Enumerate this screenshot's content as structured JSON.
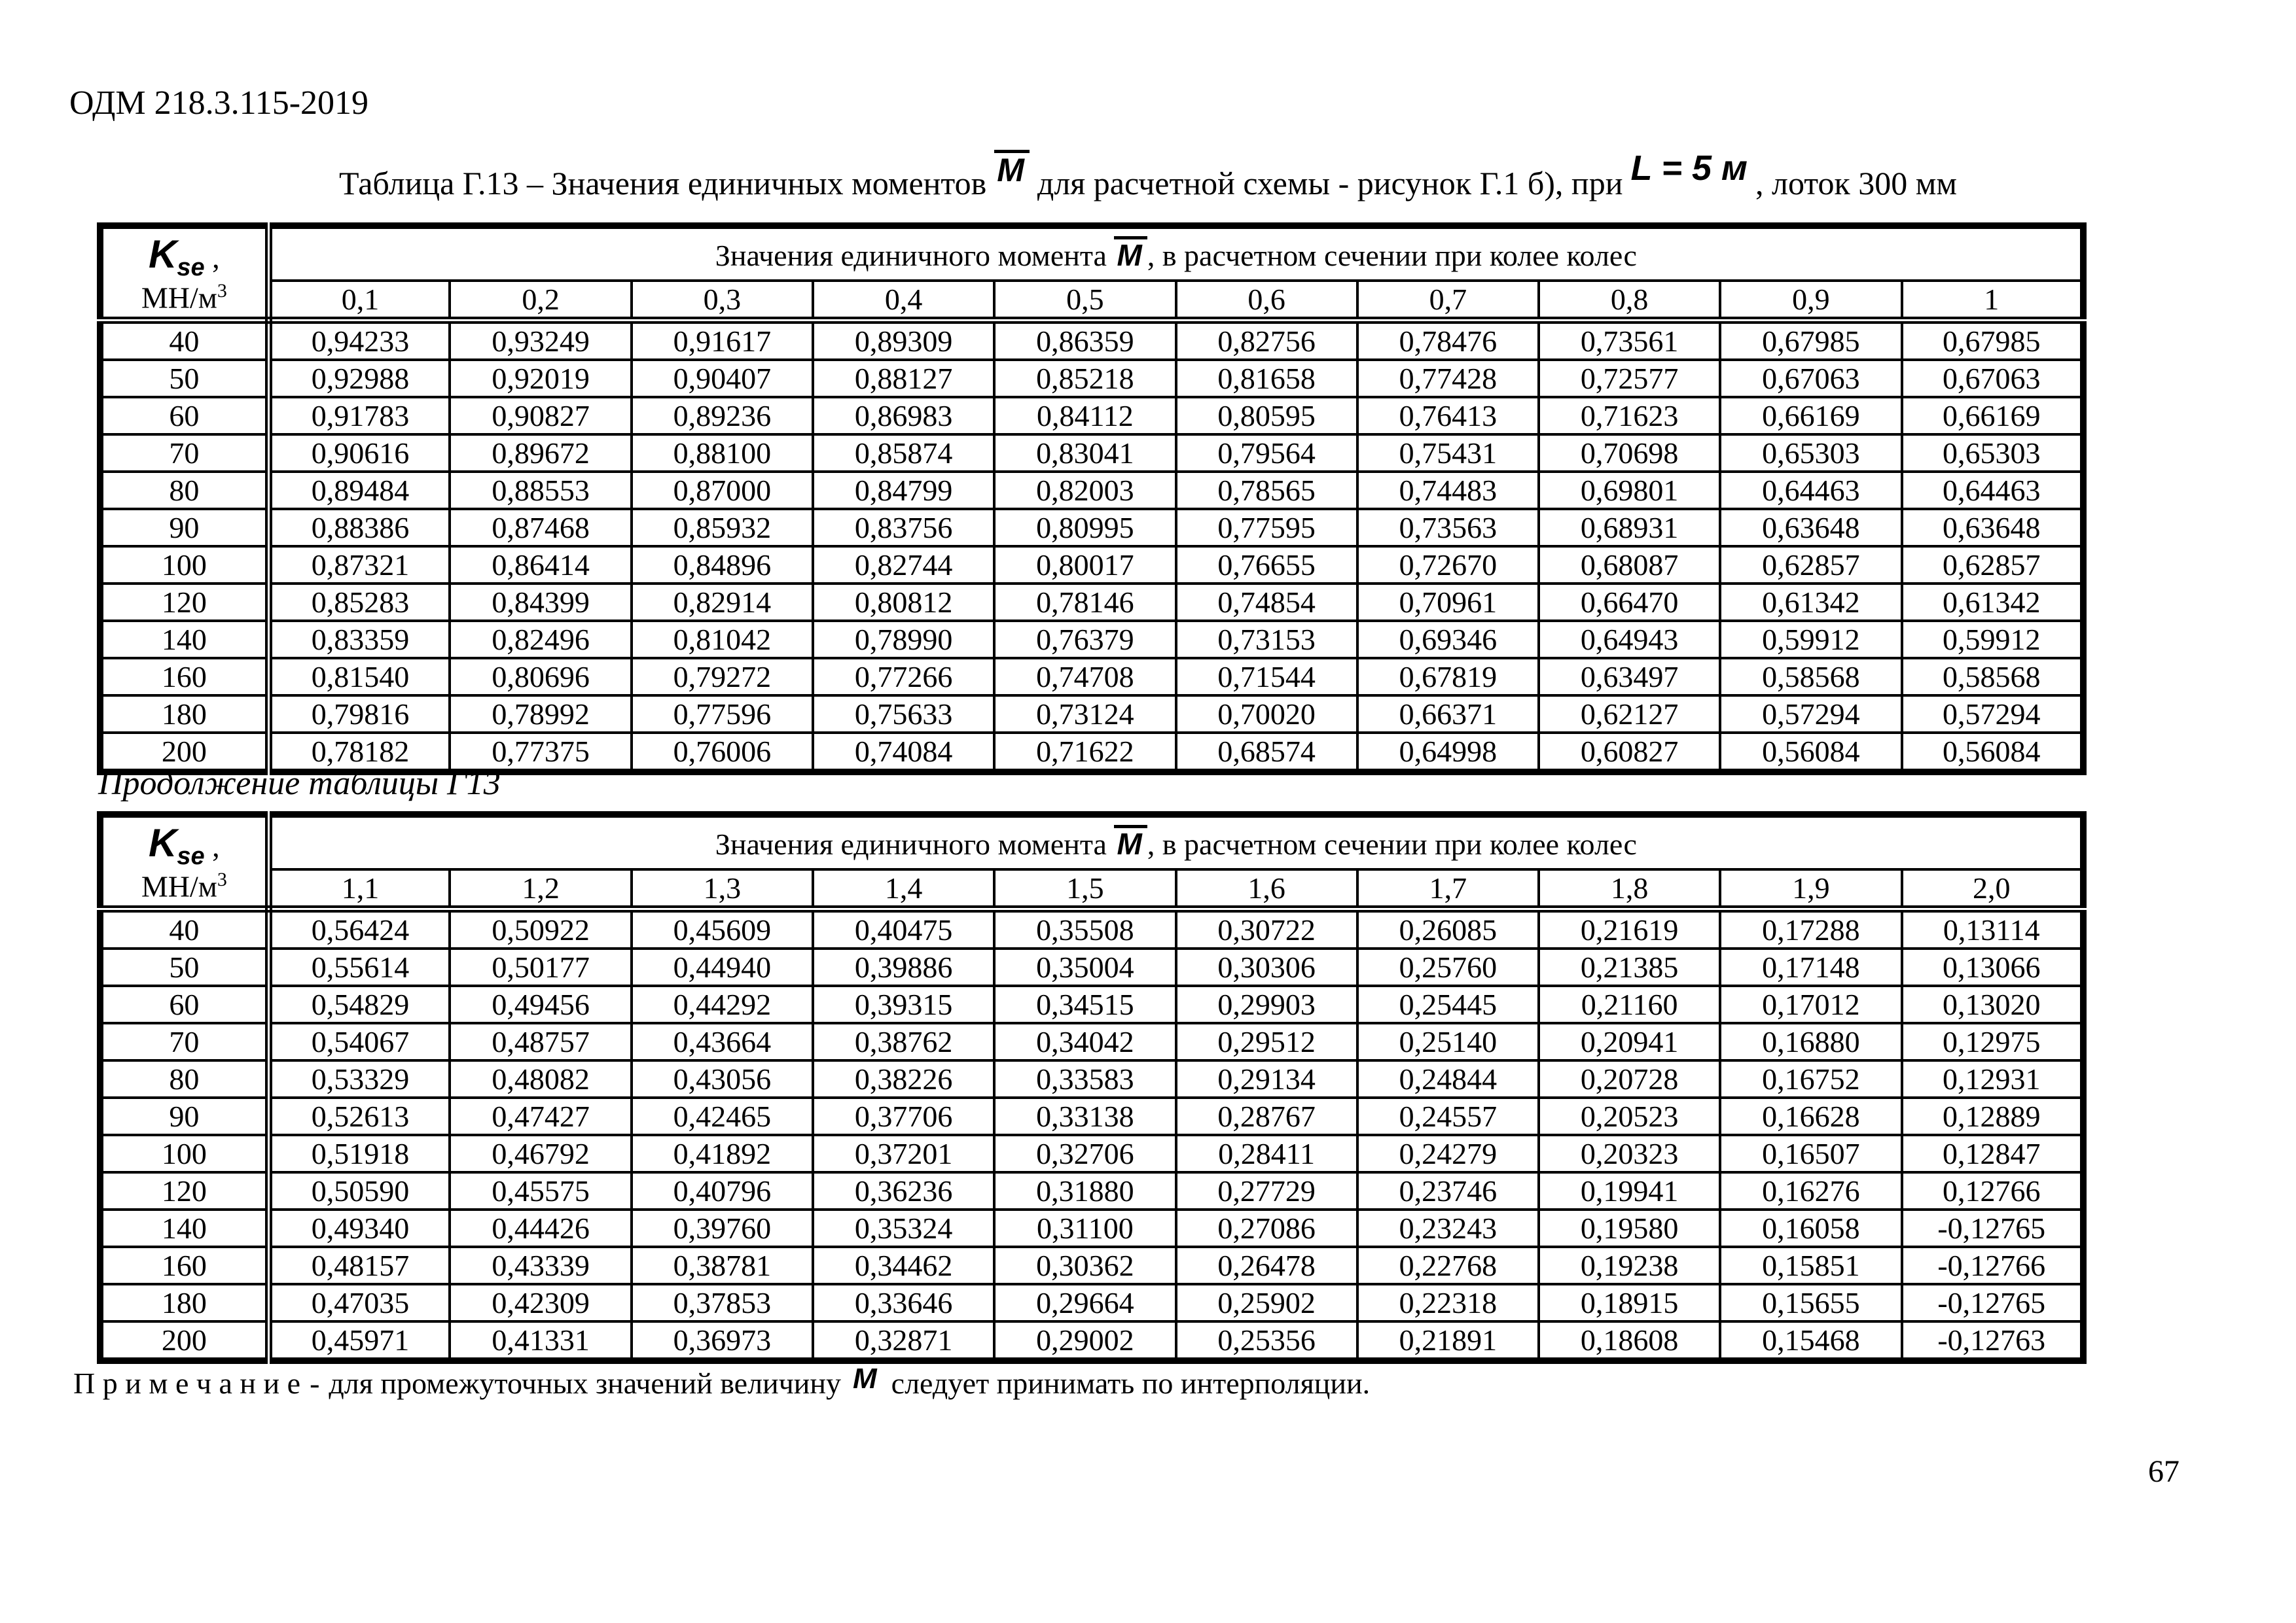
{
  "page": {
    "doc_number": "ОДМ 218.3.115-2019",
    "title_prefix": "Таблица Г.13 – Значения единичных моментов",
    "m_symbol": "M",
    "title_middle": "для расчетной схемы - рисунок Г.1 б), при",
    "title_formula": "L = 5 м",
    "title_suffix": ", лоток 300 мм",
    "continuation": "Продолжение таблицы Г13",
    "note_label": "П р и м е ч а н и е",
    "note_dash": "-",
    "note_before_m": "для промежуточных значений величину",
    "note_after_m": "следует принимать по интерполяции.",
    "page_number": "67"
  },
  "colors": {
    "text": "#000000",
    "background": "#ffffff",
    "border": "#000000"
  },
  "table1": {
    "corner_k": "K",
    "corner_k_sub": "se",
    "corner_comma": " ,",
    "corner_unit": "МН/м",
    "corner_unit_sup": "3",
    "header_before": "Значения единичного момента",
    "header_after": ", в расчетном сечении при колее колес",
    "columns": [
      "0,1",
      "0,2",
      "0,3",
      "0,4",
      "0,5",
      "0,6",
      "0,7",
      "0,8",
      "0,9",
      "1"
    ],
    "rows": [
      {
        "k": "40",
        "values": [
          "0,94233",
          "0,93249",
          "0,91617",
          "0,89309",
          "0,86359",
          "0,82756",
          "0,78476",
          "0,73561",
          "0,67985",
          "0,67985"
        ]
      },
      {
        "k": "50",
        "values": [
          "0,92988",
          "0,92019",
          "0,90407",
          "0,88127",
          "0,85218",
          "0,81658",
          "0,77428",
          "0,72577",
          "0,67063",
          "0,67063"
        ]
      },
      {
        "k": "60",
        "values": [
          "0,91783",
          "0,90827",
          "0,89236",
          "0,86983",
          "0,84112",
          "0,80595",
          "0,76413",
          "0,71623",
          "0,66169",
          "0,66169"
        ]
      },
      {
        "k": "70",
        "values": [
          "0,90616",
          "0,89672",
          "0,88100",
          "0,85874",
          "0,83041",
          "0,79564",
          "0,75431",
          "0,70698",
          "0,65303",
          "0,65303"
        ]
      },
      {
        "k": "80",
        "values": [
          "0,89484",
          "0,88553",
          "0,87000",
          "0,84799",
          "0,82003",
          "0,78565",
          "0,74483",
          "0,69801",
          "0,64463",
          "0,64463"
        ]
      },
      {
        "k": "90",
        "values": [
          "0,88386",
          "0,87468",
          "0,85932",
          "0,83756",
          "0,80995",
          "0,77595",
          "0,73563",
          "0,68931",
          "0,63648",
          "0,63648"
        ]
      },
      {
        "k": "100",
        "values": [
          "0,87321",
          "0,86414",
          "0,84896",
          "0,82744",
          "0,80017",
          "0,76655",
          "0,72670",
          "0,68087",
          "0,62857",
          "0,62857"
        ]
      },
      {
        "k": "120",
        "values": [
          "0,85283",
          "0,84399",
          "0,82914",
          "0,80812",
          "0,78146",
          "0,74854",
          "0,70961",
          "0,66470",
          "0,61342",
          "0,61342"
        ]
      },
      {
        "k": "140",
        "values": [
          "0,83359",
          "0,82496",
          "0,81042",
          "0,78990",
          "0,76379",
          "0,73153",
          "0,69346",
          "0,64943",
          "0,59912",
          "0,59912"
        ]
      },
      {
        "k": "160",
        "values": [
          "0,81540",
          "0,80696",
          "0,79272",
          "0,77266",
          "0,74708",
          "0,71544",
          "0,67819",
          "0,63497",
          "0,58568",
          "0,58568"
        ]
      },
      {
        "k": "180",
        "values": [
          "0,79816",
          "0,78992",
          "0,77596",
          "0,75633",
          "0,73124",
          "0,70020",
          "0,66371",
          "0,62127",
          "0,57294",
          "0,57294"
        ]
      },
      {
        "k": "200",
        "values": [
          "0,78182",
          "0,77375",
          "0,76006",
          "0,74084",
          "0,71622",
          "0,68574",
          "0,64998",
          "0,60827",
          "0,56084",
          "0,56084"
        ]
      }
    ]
  },
  "table2": {
    "corner_k": "K",
    "corner_k_sub": "se",
    "corner_comma": " ,",
    "corner_unit": "МН/м",
    "corner_unit_sup": "3",
    "header_before": "Значения единичного момента",
    "header_after": ", в расчетном сечении при колее колес",
    "columns": [
      "1,1",
      "1,2",
      "1,3",
      "1,4",
      "1,5",
      "1,6",
      "1,7",
      "1,8",
      "1,9",
      "2,0"
    ],
    "rows": [
      {
        "k": "40",
        "values": [
          "0,56424",
          "0,50922",
          "0,45609",
          "0,40475",
          "0,35508",
          "0,30722",
          "0,26085",
          "0,21619",
          "0,17288",
          "0,13114"
        ]
      },
      {
        "k": "50",
        "values": [
          "0,55614",
          "0,50177",
          "0,44940",
          "0,39886",
          "0,35004",
          "0,30306",
          "0,25760",
          "0,21385",
          "0,17148",
          "0,13066"
        ]
      },
      {
        "k": "60",
        "values": [
          "0,54829",
          "0,49456",
          "0,44292",
          "0,39315",
          "0,34515",
          "0,29903",
          "0,25445",
          "0,21160",
          "0,17012",
          "0,13020"
        ]
      },
      {
        "k": "70",
        "values": [
          "0,54067",
          "0,48757",
          "0,43664",
          "0,38762",
          "0,34042",
          "0,29512",
          "0,25140",
          "0,20941",
          "0,16880",
          "0,12975"
        ]
      },
      {
        "k": "80",
        "values": [
          "0,53329",
          "0,48082",
          "0,43056",
          "0,38226",
          "0,33583",
          "0,29134",
          "0,24844",
          "0,20728",
          "0,16752",
          "0,12931"
        ]
      },
      {
        "k": "90",
        "values": [
          "0,52613",
          "0,47427",
          "0,42465",
          "0,37706",
          "0,33138",
          "0,28767",
          "0,24557",
          "0,20523",
          "0,16628",
          "0,12889"
        ]
      },
      {
        "k": "100",
        "values": [
          "0,51918",
          "0,46792",
          "0,41892",
          "0,37201",
          "0,32706",
          "0,28411",
          "0,24279",
          "0,20323",
          "0,16507",
          "0,12847"
        ]
      },
      {
        "k": "120",
        "values": [
          "0,50590",
          "0,45575",
          "0,40796",
          "0,36236",
          "0,31880",
          "0,27729",
          "0,23746",
          "0,19941",
          "0,16276",
          "0,12766"
        ]
      },
      {
        "k": "140",
        "values": [
          "0,49340",
          "0,44426",
          "0,39760",
          "0,35324",
          "0,31100",
          "0,27086",
          "0,23243",
          "0,19580",
          "0,16058",
          "-0,12765"
        ]
      },
      {
        "k": "160",
        "values": [
          "0,48157",
          "0,43339",
          "0,38781",
          "0,34462",
          "0,30362",
          "0,26478",
          "0,22768",
          "0,19238",
          "0,15851",
          "-0,12766"
        ]
      },
      {
        "k": "180",
        "values": [
          "0,47035",
          "0,42309",
          "0,37853",
          "0,33646",
          "0,29664",
          "0,25902",
          "0,22318",
          "0,18915",
          "0,15655",
          "-0,12765"
        ]
      },
      {
        "k": "200",
        "values": [
          "0,45971",
          "0,41331",
          "0,36973",
          "0,32871",
          "0,29002",
          "0,25356",
          "0,21891",
          "0,18608",
          "0,15468",
          "-0,12763"
        ]
      }
    ]
  }
}
